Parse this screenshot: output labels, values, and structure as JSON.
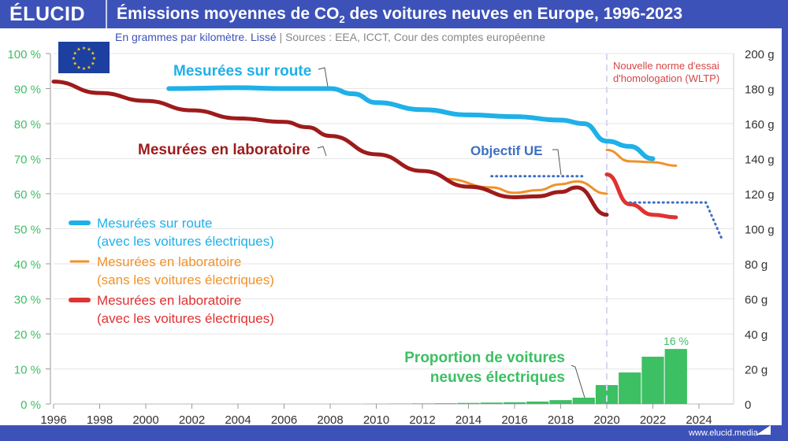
{
  "header": {
    "logo": "ÉLUCID",
    "title_pre": "Émissions moyennes de CO",
    "title_sub": "2",
    "title_post": " des voitures neuves en Europe, 1996-2023"
  },
  "subtitle": {
    "unit": "En grammes par kilomètre. Lissé",
    "sep": " | ",
    "sources": "Sources : EEA, ICCT, Cour des comptes européenne"
  },
  "footer": "www.elucid.media",
  "chart_data": {
    "type": "line",
    "xlim": [
      1996,
      2025
    ],
    "x_ticks": [
      "1996",
      "1998",
      "2000",
      "2002",
      "2004",
      "2006",
      "2008",
      "2010",
      "2012",
      "2014",
      "2016",
      "2018",
      "2020",
      "2022",
      "2024"
    ],
    "y_right": {
      "range": [
        0,
        200
      ],
      "ticks": [
        "0",
        "20 g",
        "40 g",
        "60 g",
        "80 g",
        "100 g",
        "120 g",
        "140 g",
        "160 g",
        "180 g",
        "200 g"
      ]
    },
    "y_left": {
      "range": [
        0,
        100
      ],
      "ticks": [
        "0 %",
        "10 %",
        "20 %",
        "30 %",
        "40 %",
        "50 %",
        "60 %",
        "70 %",
        "80 %",
        "90 %",
        "100 %"
      ]
    },
    "grid": true,
    "colors": {
      "route": "#1fb0e8",
      "lab_no_ev": "#f0922a",
      "lab_ev": "#e03232",
      "lab_ev_old": "#9e1b1b",
      "target": "#3d6fc4",
      "bars": "#3dbf64",
      "wltp": "#d64545"
    },
    "series": [
      {
        "key": "route",
        "points": [
          [
            2001,
            180
          ],
          [
            2004,
            180.5
          ],
          [
            2006,
            180
          ],
          [
            2008,
            180
          ],
          [
            2009,
            177
          ],
          [
            2010,
            172
          ],
          [
            2012,
            168
          ],
          [
            2014,
            165
          ],
          [
            2016,
            164
          ],
          [
            2018,
            162
          ],
          [
            2019,
            160
          ],
          [
            2020,
            150
          ],
          [
            2021,
            147
          ],
          [
            2022,
            140
          ]
        ]
      },
      {
        "key": "lab_no_ev",
        "points": [
          [
            2013,
            128.5
          ],
          [
            2015,
            123.6
          ],
          [
            2016,
            120.5
          ],
          [
            2017,
            122
          ],
          [
            2018,
            125.4
          ],
          [
            2018.7,
            127
          ],
          [
            2020,
            120
          ]
        ]
      },
      {
        "key": "lab_no_ev",
        "points": [
          [
            2020,
            145
          ],
          [
            2021,
            138.5
          ],
          [
            2022,
            138
          ],
          [
            2023,
            136
          ]
        ]
      },
      {
        "key": "lab_ev_old",
        "points": [
          [
            1996,
            184
          ],
          [
            1998,
            177.5
          ],
          [
            2000,
            173
          ],
          [
            2002,
            167.6
          ],
          [
            2004,
            163
          ],
          [
            2006,
            161
          ],
          [
            2007,
            158
          ],
          [
            2008,
            153
          ],
          [
            2010,
            142.5
          ],
          [
            2012,
            133
          ],
          [
            2014,
            124
          ],
          [
            2016,
            118
          ],
          [
            2017,
            118.5
          ],
          [
            2018,
            121
          ],
          [
            2018.7,
            123.6
          ],
          [
            2020,
            108
          ]
        ]
      },
      {
        "key": "lab_ev",
        "points": [
          [
            2020,
            131
          ],
          [
            2021,
            114
          ],
          [
            2022,
            108
          ],
          [
            2023,
            106.5
          ]
        ]
      },
      {
        "key": "target",
        "points": [
          [
            2015,
            130
          ],
          [
            2019,
            130
          ]
        ]
      },
      {
        "key": "target",
        "points": [
          [
            2021,
            115
          ],
          [
            2024.3,
            115
          ],
          [
            2025,
            94
          ]
        ]
      }
    ],
    "bars": {
      "unit": "%",
      "years": [
        2010,
        2011,
        2012,
        2013,
        2014,
        2015,
        2016,
        2017,
        2018,
        2019,
        2020,
        2021,
        2022,
        2023
      ],
      "values": [
        0.05,
        0.1,
        0.15,
        0.2,
        0.3,
        0.4,
        0.5,
        0.7,
        1.1,
        1.8,
        5.4,
        9,
        13.5,
        15.7
      ]
    },
    "labels": {
      "route": "Mesurées sur route",
      "lab": "Mesurées en laboratoire",
      "target": "Objectif UE",
      "bars1": "Proportion de voitures",
      "bars2": "neuves électriques",
      "bar_value": "16 %",
      "wltp1": "Nouvelle norme d'essai",
      "wltp2": "d'homologation (WLTP)"
    },
    "legend": [
      {
        "l1": "Mesurées sur route",
        "l2": "(avec les voitures électriques)",
        "color": "#1fb0e8"
      },
      {
        "l1": "Mesurées en laboratoire",
        "l2": "(sans les voitures électriques)",
        "color": "#f0922a"
      },
      {
        "l1": "Mesurées en laboratoire",
        "l2": "(avec les voitures électriques)",
        "color": "#e03232"
      }
    ]
  }
}
